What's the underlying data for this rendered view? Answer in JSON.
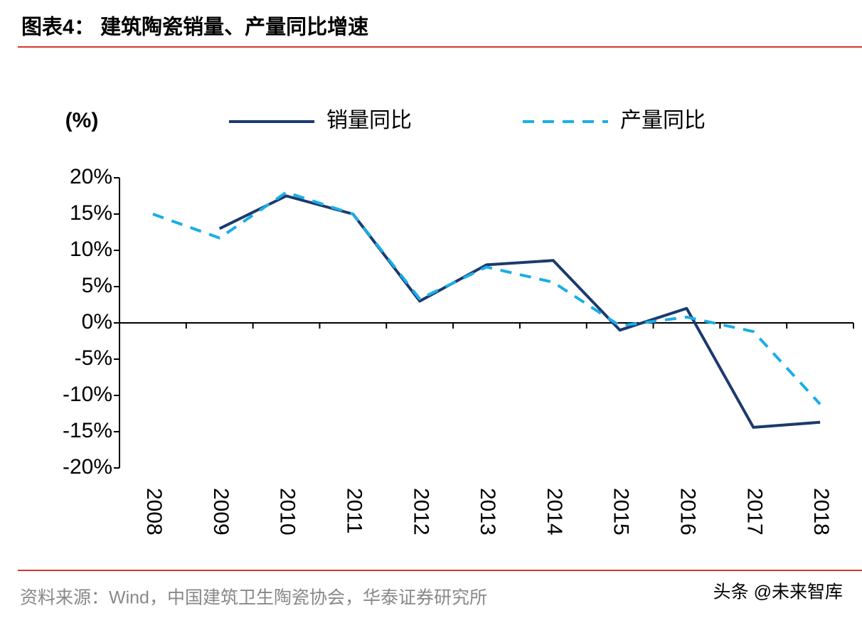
{
  "chart_data": {
    "type": "line",
    "title": "图表4：  建筑陶瓷销量、产量同比增速",
    "y_label": "(%)",
    "source": "资料来源：Wind，中国建筑卫生陶瓷协会，华泰证券研究所",
    "watermark": "头条 @未来智库",
    "categories": [
      "2008",
      "2009",
      "2010",
      "2011",
      "2012",
      "2013",
      "2014",
      "2015",
      "2016",
      "2017",
      "2018"
    ],
    "series": [
      {
        "name": "销量同比",
        "color": "#1b3a6e",
        "dash": false,
        "values": [
          null,
          13,
          17.5,
          15,
          3,
          8,
          8.6,
          -1,
          2,
          -14.4,
          -13.7
        ]
      },
      {
        "name": "产量同比",
        "color": "#1aaee6",
        "dash": true,
        "values": [
          15,
          11.7,
          18,
          15,
          3.3,
          7.7,
          5.6,
          -0.4,
          0.8,
          -1.2,
          -11.2
        ]
      }
    ],
    "ylim": [
      -20,
      20
    ],
    "yticks": [
      {
        "value": -20,
        "label": "-20%"
      },
      {
        "value": -15,
        "label": "-15%"
      },
      {
        "value": -10,
        "label": "-10%"
      },
      {
        "value": -5,
        "label": "-5%"
      },
      {
        "value": 0,
        "label": "0%"
      },
      {
        "value": 5,
        "label": "5%"
      },
      {
        "value": 10,
        "label": "10%"
      },
      {
        "value": 15,
        "label": "15%"
      },
      {
        "value": 20,
        "label": "20%"
      }
    ],
    "grid": false
  }
}
